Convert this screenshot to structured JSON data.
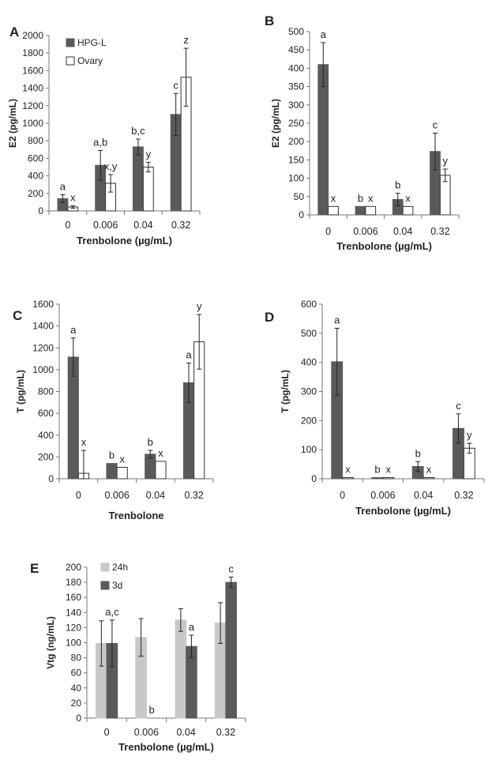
{
  "colors": {
    "dark": "#5a5a5a",
    "light": "#c8c8c8",
    "white": "#ffffff",
    "outline": "#333333"
  },
  "chart_data": [
    {
      "id": "A",
      "panel_label": "A",
      "type": "bar",
      "ylabel": "E2 (pg/mL)",
      "xlabel": "Trenbolone (µg/mL)",
      "ylim": [
        0,
        2000
      ],
      "ytick_step": 200,
      "categories": [
        "0",
        "0.006",
        "0.04",
        "0.32"
      ],
      "legend": {
        "position": "top-left"
      },
      "series": [
        {
          "name": "HPG-L",
          "fill": "dark",
          "values": [
            140,
            520,
            730,
            1100
          ],
          "errors": [
            45,
            170,
            90,
            240
          ],
          "labels": [
            "a",
            "a,b",
            "b,c",
            "c"
          ]
        },
        {
          "name": "Ovary",
          "fill": "white",
          "values": [
            45,
            315,
            500,
            1525
          ],
          "errors": [
            15,
            100,
            55,
            330
          ],
          "labels": [
            "x",
            "x,y",
            "y",
            "z"
          ]
        }
      ]
    },
    {
      "id": "B",
      "panel_label": "B",
      "type": "bar",
      "ylabel": "E2 (pg/mL)",
      "xlabel": "Trenbolone (µg/mL)",
      "ylim": [
        0,
        500
      ],
      "ytick_step": 50,
      "categories": [
        "0",
        "0.006",
        "0.04",
        "0.32"
      ],
      "series": [
        {
          "fill": "dark",
          "values": [
            410,
            23,
            42,
            173
          ],
          "errors": [
            60,
            0,
            17,
            50
          ],
          "labels": [
            "a",
            "b",
            "b",
            "c"
          ]
        },
        {
          "fill": "white",
          "values": [
            23,
            23,
            23,
            108
          ],
          "errors": [
            0,
            0,
            0,
            17
          ],
          "labels": [
            "x",
            "x",
            "x",
            "y"
          ]
        }
      ]
    },
    {
      "id": "C",
      "panel_label": "C",
      "type": "bar",
      "ylabel": "T (pg/mL)",
      "xlabel": "Trenbolone",
      "ylim": [
        0,
        1600
      ],
      "ytick_step": 200,
      "categories": [
        "0",
        "0.006",
        "0.04",
        "0.32"
      ],
      "series": [
        {
          "fill": "dark",
          "values": [
            1115,
            140,
            225,
            880
          ],
          "errors": [
            175,
            0,
            35,
            180
          ],
          "labels": [
            "a",
            "b",
            "b",
            "a"
          ]
        },
        {
          "fill": "white",
          "values": [
            50,
            105,
            160,
            1255
          ],
          "errors": [
            210,
            0,
            0,
            250
          ],
          "labels": [
            "x",
            "x",
            "x",
            "y"
          ]
        }
      ]
    },
    {
      "id": "D",
      "panel_label": "D",
      "type": "bar",
      "ylabel": "T (pg/mL)",
      "xlabel": "Trenbolone (µg/mL)",
      "ylim": [
        0,
        600
      ],
      "ytick_step": 100,
      "categories": [
        "0",
        "0.006",
        "0.04",
        "0.32"
      ],
      "series": [
        {
          "fill": "dark",
          "values": [
            402,
            4,
            42,
            173
          ],
          "errors": [
            115,
            0,
            17,
            50
          ],
          "labels": [
            "a",
            "b",
            "b",
            "c"
          ]
        },
        {
          "fill": "white",
          "values": [
            4,
            4,
            4,
            105
          ],
          "errors": [
            0,
            0,
            0,
            17
          ],
          "labels": [
            "x",
            "x",
            "x",
            "y"
          ]
        }
      ]
    },
    {
      "id": "E",
      "panel_label": "E",
      "type": "bar",
      "ylabel": "Vtg (ng/mL)",
      "xlabel": "Trenbolone (µg/mL)",
      "ylim": [
        0,
        200
      ],
      "ytick_step": 20,
      "categories": [
        "0",
        "0.006",
        "0.04",
        "0.32"
      ],
      "legend": {
        "position": "top-left"
      },
      "series": [
        {
          "name": "24h",
          "fill": "light",
          "values": [
            99,
            107,
            130,
            126
          ],
          "errors": [
            30,
            25,
            15,
            27
          ],
          "labels": [
            "",
            "",
            "",
            ""
          ]
        },
        {
          "name": "3d",
          "fill": "dark",
          "values": [
            99,
            0,
            95,
            180
          ],
          "errors": [
            31,
            0,
            15,
            7
          ],
          "labels": [
            "a,c",
            "b",
            "a",
            "c"
          ]
        }
      ]
    }
  ]
}
